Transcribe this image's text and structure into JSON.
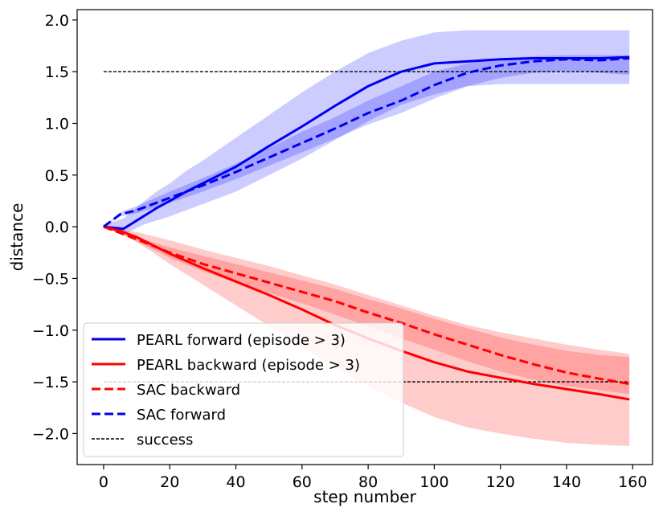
{
  "chart_data": {
    "type": "line",
    "xlabel": "step number",
    "ylabel": "distance",
    "xlim": [
      -8,
      166
    ],
    "ylim": [
      -2.3,
      2.1
    ],
    "xticks": [
      0,
      20,
      40,
      60,
      80,
      100,
      120,
      140,
      160
    ],
    "yticks": [
      -2.0,
      -1.5,
      -1.0,
      -0.5,
      0.0,
      0.5,
      1.0,
      1.5,
      2.0
    ],
    "ytick_labels": [
      "−2.0",
      "−1.5",
      "−1.0",
      "−0.5",
      "0.0",
      "0.5",
      "1.0",
      "1.5",
      "2.0"
    ],
    "xtick_labels": [
      "0",
      "20",
      "40",
      "60",
      "80",
      "100",
      "120",
      "140",
      "160"
    ],
    "grid": false,
    "legend_position": "lower-left",
    "series": [
      {
        "name": "PEARL forward (episode > 3)",
        "color": "#0000ee",
        "style": "solid",
        "band_color": "#0000ff",
        "x": [
          0,
          3,
          6,
          9,
          12,
          16,
          20,
          25,
          30,
          35,
          40,
          50,
          60,
          70,
          80,
          90,
          100,
          110,
          120,
          130,
          140,
          150,
          159
        ],
        "values": [
          0.0,
          -0.01,
          -0.02,
          0.04,
          0.1,
          0.18,
          0.25,
          0.34,
          0.42,
          0.5,
          0.58,
          0.78,
          0.97,
          1.17,
          1.36,
          1.5,
          1.58,
          1.6,
          1.62,
          1.63,
          1.63,
          1.63,
          1.64
        ],
        "upper": [
          0.0,
          0.05,
          0.08,
          0.16,
          0.24,
          0.34,
          0.42,
          0.54,
          0.64,
          0.75,
          0.86,
          1.08,
          1.3,
          1.5,
          1.68,
          1.8,
          1.88,
          1.9,
          1.9,
          1.9,
          1.9,
          1.9,
          1.9
        ],
        "lower": [
          0.0,
          -0.04,
          -0.07,
          -0.03,
          0.02,
          0.06,
          0.1,
          0.16,
          0.22,
          0.28,
          0.34,
          0.5,
          0.66,
          0.84,
          1.02,
          1.18,
          1.28,
          1.36,
          1.38,
          1.38,
          1.38,
          1.38,
          1.38
        ]
      },
      {
        "name": "PEARL backward (episode > 3)",
        "color": "#ff0000",
        "style": "solid",
        "band_color": "#ff0000",
        "x": [
          0,
          5,
          10,
          15,
          20,
          30,
          40,
          50,
          60,
          70,
          80,
          90,
          100,
          110,
          120,
          130,
          140,
          150,
          159
        ],
        "values": [
          0.0,
          -0.04,
          -0.1,
          -0.18,
          -0.26,
          -0.4,
          -0.53,
          -0.66,
          -0.8,
          -0.95,
          -1.08,
          -1.2,
          -1.31,
          -1.4,
          -1.46,
          -1.52,
          -1.57,
          -1.62,
          -1.67
        ],
        "upper": [
          0.0,
          -0.02,
          -0.05,
          -0.09,
          -0.13,
          -0.22,
          -0.3,
          -0.38,
          -0.47,
          -0.56,
          -0.66,
          -0.76,
          -0.86,
          -0.95,
          -1.02,
          -1.08,
          -1.14,
          -1.19,
          -1.23
        ],
        "lower": [
          0.0,
          -0.06,
          -0.15,
          -0.25,
          -0.36,
          -0.56,
          -0.76,
          -0.96,
          -1.16,
          -1.36,
          -1.54,
          -1.7,
          -1.84,
          -1.94,
          -2.0,
          -2.05,
          -2.09,
          -2.11,
          -2.12
        ]
      },
      {
        "name": "SAC backward",
        "color": "#ff0000",
        "style": "dashed",
        "band_color": "#ff0000",
        "x": [
          0,
          10,
          20,
          30,
          40,
          50,
          60,
          70,
          80,
          90,
          100,
          110,
          120,
          130,
          140,
          150,
          159
        ],
        "values": [
          0.0,
          -0.12,
          -0.25,
          -0.36,
          -0.45,
          -0.54,
          -0.63,
          -0.72,
          -0.83,
          -0.93,
          -1.04,
          -1.14,
          -1.24,
          -1.33,
          -1.41,
          -1.47,
          -1.52
        ],
        "upper": [
          0.0,
          -0.1,
          -0.2,
          -0.28,
          -0.36,
          -0.44,
          -0.52,
          -0.6,
          -0.7,
          -0.79,
          -0.89,
          -0.98,
          -1.07,
          -1.14,
          -1.2,
          -1.24,
          -1.26
        ],
        "lower": [
          0.0,
          -0.14,
          -0.3,
          -0.43,
          -0.54,
          -0.64,
          -0.74,
          -0.85,
          -0.96,
          -1.08,
          -1.19,
          -1.3,
          -1.4,
          -1.48,
          -1.54,
          -1.58,
          -1.62
        ]
      },
      {
        "name": "SAC forward",
        "color": "#0000ee",
        "style": "dashed",
        "band_color": "#0000ff",
        "x": [
          0,
          5,
          10,
          15,
          20,
          30,
          40,
          50,
          60,
          70,
          80,
          90,
          100,
          110,
          120,
          130,
          140,
          150,
          159
        ],
        "values": [
          0.0,
          0.12,
          0.16,
          0.22,
          0.28,
          0.4,
          0.53,
          0.67,
          0.81,
          0.95,
          1.1,
          1.22,
          1.37,
          1.49,
          1.56,
          1.6,
          1.62,
          1.61,
          1.63
        ],
        "upper": [
          0.0,
          0.14,
          0.2,
          0.27,
          0.34,
          0.47,
          0.61,
          0.76,
          0.92,
          1.06,
          1.22,
          1.36,
          1.5,
          1.58,
          1.63,
          1.65,
          1.66,
          1.66,
          1.66
        ],
        "lower": [
          0.0,
          0.1,
          0.13,
          0.18,
          0.23,
          0.34,
          0.46,
          0.59,
          0.72,
          0.85,
          0.99,
          1.1,
          1.24,
          1.36,
          1.44,
          1.49,
          1.51,
          1.49,
          1.47
        ]
      },
      {
        "name": "success",
        "color": "#000000",
        "style": "dashed-thin",
        "hlines": [
          1.5,
          -1.5
        ],
        "x": [
          0,
          159
        ]
      }
    ]
  }
}
